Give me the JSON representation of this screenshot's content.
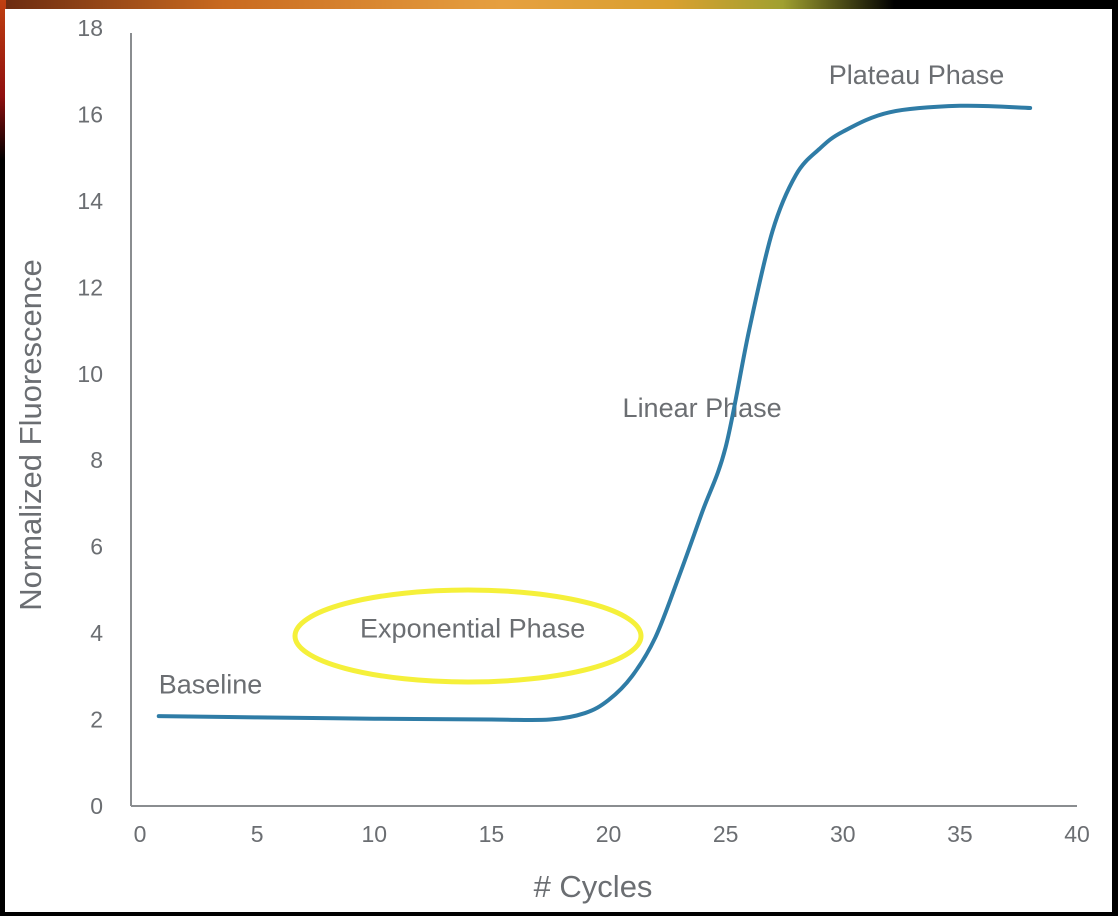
{
  "chart_data": {
    "type": "line",
    "title": "",
    "xlabel": "# Cycles",
    "ylabel": "Normalized Fluorescence",
    "xlim": [
      0,
      40
    ],
    "ylim": [
      0,
      18
    ],
    "xticks": [
      0,
      5,
      10,
      15,
      20,
      25,
      30,
      35,
      40
    ],
    "yticks": [
      0,
      2,
      4,
      6,
      8,
      10,
      12,
      14,
      16,
      18
    ],
    "grid": false,
    "series": [
      {
        "color": "#2f7ca6",
        "x": [
          0.8,
          5,
          10,
          15,
          17.5,
          19,
          20,
          21,
          22,
          23,
          24,
          25,
          26,
          27,
          28,
          29,
          30,
          32,
          35,
          38
        ],
        "y": [
          2.08,
          2.05,
          2.02,
          2.0,
          2.0,
          2.15,
          2.45,
          3.0,
          3.9,
          5.3,
          6.8,
          8.3,
          11.0,
          13.3,
          14.6,
          15.2,
          15.6,
          16.05,
          16.2,
          16.15
        ]
      }
    ],
    "annotations": [
      {
        "text": "Baseline",
        "x": 0.8,
        "y": 2.6
      },
      {
        "text": "Exponential Phase",
        "x": 14.2,
        "y": 3.9,
        "highlight": "yellow-ellipse",
        "highlight_color": "#f5f03a"
      },
      {
        "text": "Linear Phase",
        "x": 20.6,
        "y": 9.0
      },
      {
        "text": "Plateau Phase",
        "x": 29.4,
        "y": 16.7
      }
    ]
  }
}
